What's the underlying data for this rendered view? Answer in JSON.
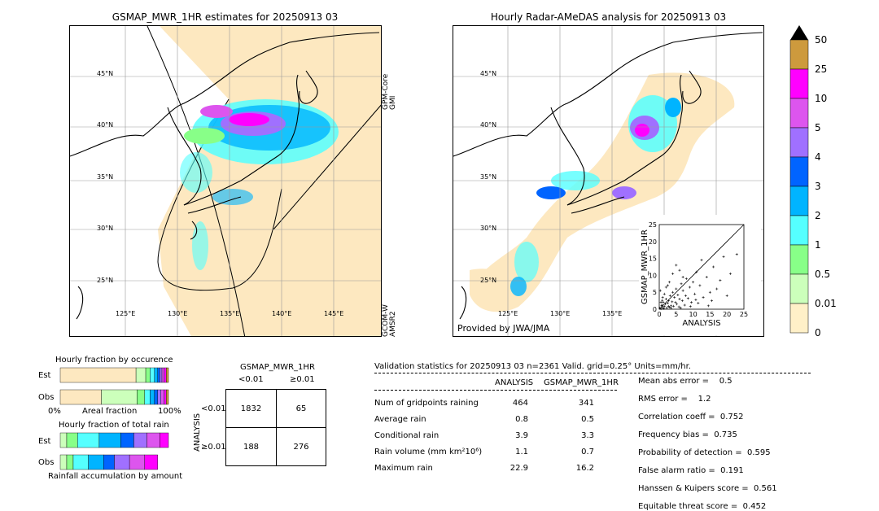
{
  "left_map": {
    "title": "GSMAP_MWR_1HR estimates for 20250913 03",
    "side_label_top": "GPM-Core\nGMI",
    "side_label_bottom": "GCOM-W\nAMSR2",
    "lat_labels": [
      "45°N",
      "40°N",
      "35°N",
      "30°N",
      "25°N"
    ],
    "lon_labels": [
      "125°E",
      "130°E",
      "135°E",
      "140°E",
      "145°E"
    ]
  },
  "right_map": {
    "title": "Hourly Radar-AMeDAS analysis for 20250913 03",
    "credit": "Provided by JWA/JMA",
    "lat_labels": [
      "45°N",
      "40°N",
      "35°N",
      "30°N",
      "25°N"
    ],
    "lon_labels": [
      "125°E",
      "130°E",
      "135°E"
    ]
  },
  "colorbar": {
    "labels": [
      "50",
      "25",
      "10",
      "5",
      "4",
      "3",
      "2",
      "1",
      "0.5",
      "0.01",
      "0"
    ],
    "colors": [
      "#cd9a3d",
      "#ff00ff",
      "#dd55ee",
      "#a070ff",
      "#0064ff",
      "#00b4ff",
      "#55ffff",
      "#88ff88",
      "#ccffbb",
      "#fff0c8",
      "#fde8c0"
    ]
  },
  "chart_data": [
    {
      "type": "scatter",
      "xlabel": "ANALYSIS",
      "ylabel": "GSMAP_MWR_1HR",
      "xlim": [
        0,
        25
      ],
      "ylim": [
        0,
        25
      ],
      "xticks": [
        "0",
        "5",
        "10",
        "15",
        "20",
        "25"
      ],
      "yticks": [
        "0",
        "5",
        "10",
        "15",
        "20",
        "25"
      ],
      "points": [
        [
          0.2,
          0.3
        ],
        [
          0.5,
          0.1
        ],
        [
          0.8,
          1.2
        ],
        [
          1.0,
          0.5
        ],
        [
          1.2,
          2.0
        ],
        [
          1.5,
          0.8
        ],
        [
          1.8,
          1.5
        ],
        [
          2.0,
          3.0
        ],
        [
          2.2,
          0.4
        ],
        [
          2.5,
          1.8
        ],
        [
          2.8,
          2.5
        ],
        [
          3.0,
          0.6
        ],
        [
          3.2,
          4.0
        ],
        [
          3.5,
          1.0
        ],
        [
          3.8,
          2.2
        ],
        [
          4.0,
          5.0
        ],
        [
          4.2,
          0.9
        ],
        [
          4.5,
          3.5
        ],
        [
          4.8,
          2.0
        ],
        [
          5.0,
          6.0
        ],
        [
          5.2,
          1.5
        ],
        [
          5.5,
          4.2
        ],
        [
          5.8,
          0.7
        ],
        [
          6.0,
          3.0
        ],
        [
          6.5,
          7.5
        ],
        [
          6.8,
          2.5
        ],
        [
          7.0,
          5.5
        ],
        [
          7.5,
          1.2
        ],
        [
          7.8,
          4.0
        ],
        [
          8.0,
          9.0
        ],
        [
          8.5,
          3.2
        ],
        [
          9.0,
          6.5
        ],
        [
          9.5,
          2.0
        ],
        [
          10.0,
          8.0
        ],
        [
          10.5,
          4.5
        ],
        [
          11.0,
          11.0
        ],
        [
          11.5,
          1.8
        ],
        [
          12.0,
          7.0
        ],
        [
          12.5,
          14.5
        ],
        [
          13.0,
          3.5
        ],
        [
          14.0,
          9.5
        ],
        [
          15.0,
          5.0
        ],
        [
          15.5,
          2.5
        ],
        [
          16.0,
          12.5
        ],
        [
          17.0,
          6.0
        ],
        [
          18.0,
          8.5
        ],
        [
          19.0,
          15.5
        ],
        [
          20.0,
          4.0
        ],
        [
          21.0,
          10.5
        ],
        [
          22.9,
          16.2
        ],
        [
          1.0,
          3.5
        ],
        [
          2.0,
          6.5
        ],
        [
          3.0,
          8.0
        ],
        [
          4.0,
          10.5
        ],
        [
          5.0,
          13.0
        ],
        [
          6.0,
          11.5
        ],
        [
          7.0,
          9.5
        ],
        [
          0.5,
          2.0
        ],
        [
          1.5,
          4.5
        ],
        [
          2.5,
          7.0
        ],
        [
          3.5,
          0.3
        ],
        [
          0.3,
          5.5
        ],
        [
          0.7,
          1.0
        ],
        [
          1.3,
          0.2
        ],
        [
          2.7,
          0.9
        ],
        [
          9.2,
          0.8
        ],
        [
          14.5,
          1.0
        ],
        [
          6.3,
          0.4
        ],
        [
          10.8,
          2.8
        ],
        [
          0.9,
          2.6
        ]
      ],
      "diagonal": true
    },
    {
      "type": "bar",
      "title": "Hourly fraction by occurence",
      "categories": [
        "Est",
        "Obs"
      ],
      "xlabel_left": "0%",
      "xlabel_mid": "Areal fraction",
      "xlabel_right": "100%",
      "series": [
        {
          "values": [
            0.7,
            0.38
          ]
        },
        {
          "values": [
            0.09,
            0.33
          ]
        },
        {
          "values": [
            0.04,
            0.07
          ]
        },
        {
          "values": [
            0.04,
            0.05
          ]
        },
        {
          "values": [
            0.03,
            0.04
          ]
        },
        {
          "values": [
            0.02,
            0.03
          ]
        },
        {
          "values": [
            0.02,
            0.03
          ]
        },
        {
          "values": [
            0.02,
            0.03
          ]
        },
        {
          "values": [
            0.02,
            0.02
          ]
        },
        {
          "values": [
            0.02,
            0.02
          ]
        }
      ],
      "colors": [
        "#fde8c0",
        "#ccffbb",
        "#88ff88",
        "#55ffff",
        "#00b4ff",
        "#0064ff",
        "#a070ff",
        "#dd55ee",
        "#ff00ff",
        "#cd9a3d"
      ]
    },
    {
      "type": "bar",
      "title": "Hourly fraction of total rain",
      "categories": [
        "Est",
        "Obs"
      ],
      "xlabel": "Rainfall accumulation by amount",
      "series": [
        {
          "values": [
            0.06,
            0.06
          ]
        },
        {
          "values": [
            0.1,
            0.06
          ]
        },
        {
          "values": [
            0.2,
            0.14
          ]
        },
        {
          "values": [
            0.2,
            0.14
          ]
        },
        {
          "values": [
            0.12,
            0.1
          ]
        },
        {
          "values": [
            0.12,
            0.14
          ]
        },
        {
          "values": [
            0.12,
            0.14
          ]
        },
        {
          "values": [
            0.08,
            0.12
          ]
        }
      ],
      "colors": [
        "#ccffbb",
        "#88ff88",
        "#55ffff",
        "#00b4ff",
        "#0064ff",
        "#a070ff",
        "#dd55ee",
        "#ff00ff"
      ]
    }
  ],
  "contingency": {
    "title": "GSMAP_MWR_1HR",
    "col_labels": [
      "<0.01",
      "≥0.01"
    ],
    "row_axis": "ANALYSIS",
    "row_labels": [
      "<0.01",
      "≥0.01"
    ],
    "cells": [
      [
        "1832",
        "65"
      ],
      [
        "188",
        "276"
      ]
    ]
  },
  "validation": {
    "header": "Validation statistics for 20250913 03  n=2361 Valid. grid=0.25° Units=mm/hr.",
    "col_analysis": "ANALYSIS",
    "col_gsmap": "GSMAP_MWR_1HR",
    "rows": [
      {
        "label": "Num of gridpoints raining",
        "a": "464",
        "g": "341"
      },
      {
        "label": "Average rain",
        "a": "0.8",
        "g": "0.5"
      },
      {
        "label": "Conditional rain",
        "a": "3.9",
        "g": "3.3"
      },
      {
        "label": "Rain volume (mm km²10⁶)",
        "a": "1.1",
        "g": "0.7"
      },
      {
        "label": "Maximum rain",
        "a": "22.9",
        "g": "16.2"
      }
    ],
    "scores": [
      "Mean abs error =    0.5",
      "RMS error =    1.2",
      "Correlation coeff =  0.752",
      "Frequency bias =  0.735",
      "Probability of detection =  0.595",
      "False alarm ratio =  0.191",
      "Hanssen & Kuipers score =  0.561",
      "Equitable threat score =  0.452"
    ]
  }
}
